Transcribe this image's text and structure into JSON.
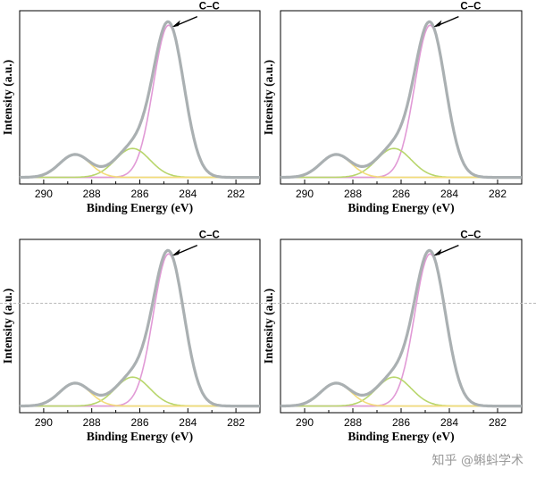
{
  "watermark": "知乎 @蝌蚪学术",
  "colors": {
    "envelope": "#aab0b2",
    "cc": "#e19ad6",
    "c_o": "#b8d66c",
    "o_c_o": "#f3dc7a",
    "background": "#c9c2a7",
    "axis": "#000000"
  },
  "chart_data": [
    {
      "type": "line",
      "xlabel": "Binding Energy (eV)",
      "ylabel": "Intensity (a.u.)",
      "xlim": [
        291,
        281
      ],
      "ylim": [
        0,
        1.08
      ],
      "xticks": [
        290,
        288,
        286,
        284,
        282
      ],
      "grid": false,
      "annotation": {
        "text": "C–C",
        "x": 284.8,
        "y": 1.0
      },
      "peaks": [
        {
          "center": 284.8,
          "height": 1.0,
          "fwhm": 1.5,
          "color_key": "cc"
        },
        {
          "center": 286.3,
          "height": 0.19,
          "fwhm": 1.7,
          "color_key": "c_o"
        },
        {
          "center": 288.7,
          "height": 0.15,
          "fwhm": 1.5,
          "color_key": "o_c_o"
        }
      ],
      "baseline": 0.02
    },
    {
      "type": "line",
      "xlabel": "Binding Energy (eV)",
      "ylabel": "Intensity (a.u.)",
      "xlim": [
        291,
        281
      ],
      "ylim": [
        0,
        1.08
      ],
      "xticks": [
        290,
        288,
        286,
        284,
        282
      ],
      "grid": false,
      "annotation": {
        "text": "C–C",
        "x": 284.8,
        "y": 1.0
      },
      "peaks": [
        {
          "center": 284.8,
          "height": 1.0,
          "fwhm": 1.5,
          "color_key": "cc"
        },
        {
          "center": 286.3,
          "height": 0.19,
          "fwhm": 1.7,
          "color_key": "c_o"
        },
        {
          "center": 288.7,
          "height": 0.15,
          "fwhm": 1.5,
          "color_key": "o_c_o"
        }
      ],
      "baseline": 0.02
    },
    {
      "type": "line",
      "xlabel": "Binding Energy (eV)",
      "ylabel": "Intensity (a.u.)",
      "xlim": [
        291,
        281
      ],
      "ylim": [
        0,
        1.08
      ],
      "xticks": [
        290,
        288,
        286,
        284,
        282
      ],
      "grid": false,
      "annotation": {
        "text": "C–C",
        "x": 284.8,
        "y": 1.0
      },
      "peaks": [
        {
          "center": 284.8,
          "height": 1.0,
          "fwhm": 1.5,
          "color_key": "cc"
        },
        {
          "center": 286.3,
          "height": 0.19,
          "fwhm": 1.7,
          "color_key": "c_o"
        },
        {
          "center": 288.7,
          "height": 0.15,
          "fwhm": 1.5,
          "color_key": "o_c_o"
        }
      ],
      "baseline": 0.02
    },
    {
      "type": "line",
      "xlabel": "Binding Energy (eV)",
      "ylabel": "Intensity (a.u.)",
      "xlim": [
        291,
        281
      ],
      "ylim": [
        0,
        1.08
      ],
      "xticks": [
        290,
        288,
        286,
        284,
        282
      ],
      "grid": false,
      "annotation": {
        "text": "C–C",
        "x": 284.8,
        "y": 1.0
      },
      "peaks": [
        {
          "center": 284.8,
          "height": 1.0,
          "fwhm": 1.5,
          "color_key": "cc"
        },
        {
          "center": 286.3,
          "height": 0.19,
          "fwhm": 1.7,
          "color_key": "c_o"
        },
        {
          "center": 288.7,
          "height": 0.15,
          "fwhm": 1.5,
          "color_key": "o_c_o"
        }
      ],
      "baseline": 0.02
    }
  ]
}
